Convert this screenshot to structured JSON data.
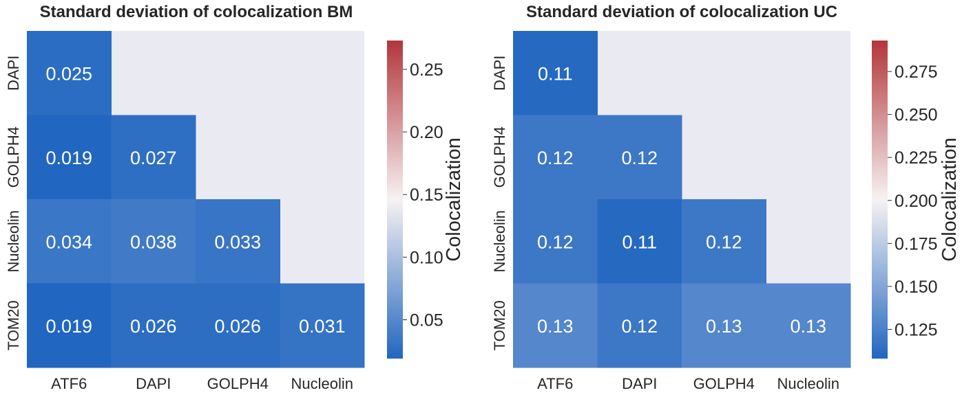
{
  "colors": {
    "panel_background": "#EAEAF2",
    "cmap_low": "#2166C0",
    "cmap_mid": "#F7F2F2",
    "cmap_high": "#B2363B",
    "cell_text": "#FFFFFF"
  },
  "chart_data": [
    {
      "type": "heatmap",
      "title": "Standard deviation of colocalization BM",
      "x_categories": [
        "ATF6",
        "DAPI",
        "GOLPH4",
        "Nucleolin"
      ],
      "y_categories": [
        "DAPI",
        "GOLPH4",
        "Nucleolin",
        "TOM20"
      ],
      "mask": "upper-triangle",
      "cells": [
        [
          "0.025",
          null,
          null,
          null
        ],
        [
          "0.019",
          "0.027",
          null,
          null
        ],
        [
          "0.034",
          "0.038",
          "0.033",
          null
        ],
        [
          "0.019",
          "0.026",
          "0.026",
          "0.031"
        ]
      ],
      "values": [
        [
          0.025,
          null,
          null,
          null
        ],
        [
          0.019,
          0.027,
          null,
          null
        ],
        [
          0.034,
          0.038,
          0.033,
          null
        ],
        [
          0.019,
          0.026,
          0.026,
          0.031
        ]
      ],
      "colorbar": {
        "label": "Colocalization",
        "vmin": 0.019,
        "vmax": 0.273,
        "ticks": [
          "0.05",
          "0.10",
          "0.15",
          "0.20",
          "0.25"
        ],
        "tick_values": [
          0.05,
          0.1,
          0.15,
          0.2,
          0.25
        ]
      }
    },
    {
      "type": "heatmap",
      "title": "Standard deviation of colocalization UC",
      "x_categories": [
        "ATF6",
        "DAPI",
        "GOLPH4",
        "Nucleolin"
      ],
      "y_categories": [
        "DAPI",
        "GOLPH4",
        "Nucleolin",
        "TOM20"
      ],
      "mask": "upper-triangle",
      "cells": [
        [
          "0.11",
          null,
          null,
          null
        ],
        [
          "0.12",
          "0.12",
          null,
          null
        ],
        [
          "0.12",
          "0.11",
          "0.12",
          null
        ],
        [
          "0.13",
          "0.12",
          "0.13",
          "0.13"
        ]
      ],
      "values": [
        [
          0.11,
          null,
          null,
          null
        ],
        [
          0.12,
          0.12,
          null,
          null
        ],
        [
          0.12,
          0.11,
          0.12,
          null
        ],
        [
          0.13,
          0.12,
          0.13,
          0.13
        ]
      ],
      "colorbar": {
        "label": "Colocalization",
        "vmin": 0.108,
        "vmax": 0.293,
        "ticks": [
          "0.125",
          "0.150",
          "0.175",
          "0.200",
          "0.225",
          "0.250",
          "0.275"
        ],
        "tick_values": [
          0.125,
          0.15,
          0.175,
          0.2,
          0.225,
          0.25,
          0.275
        ]
      }
    }
  ]
}
